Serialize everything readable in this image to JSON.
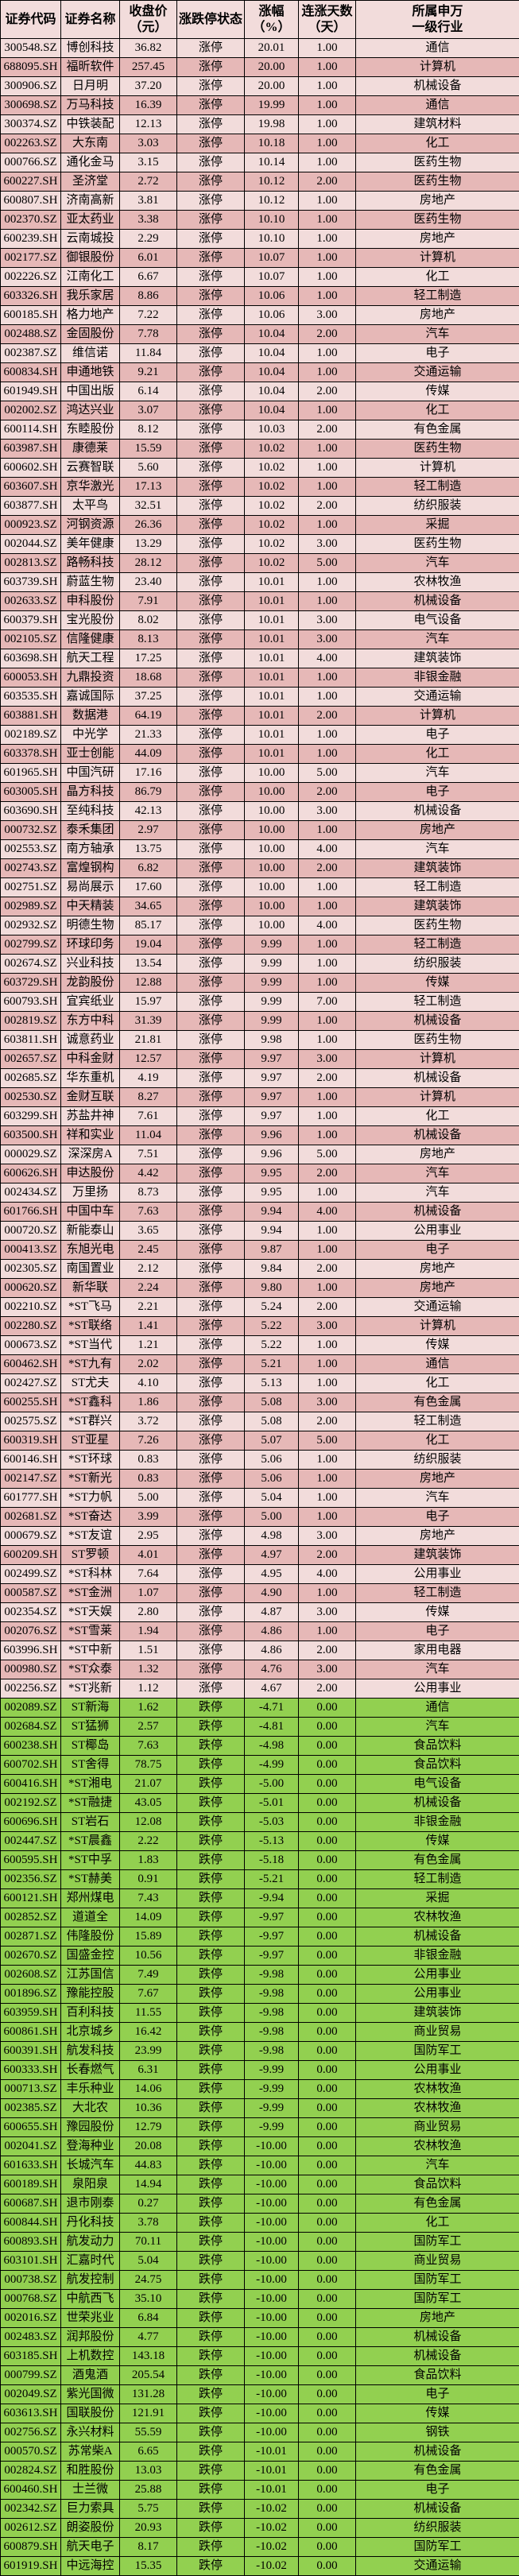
{
  "table": {
    "columns": [
      {
        "key": "code",
        "label": "证券代码"
      },
      {
        "key": "name",
        "label": "证券名称"
      },
      {
        "key": "close_price",
        "label": "收盘价\n（元）"
      },
      {
        "key": "limit_status",
        "label": "涨跌停状态"
      },
      {
        "key": "change_pct",
        "label": "涨幅\n（%）"
      },
      {
        "key": "consecutive_days",
        "label": "连涨天数\n（天）"
      },
      {
        "key": "industry",
        "label": "所属申万\n一级行业"
      }
    ],
    "status_labels": {
      "limit_up": "涨停",
      "limit_down": "跌停"
    },
    "colors": {
      "row_light": "#f2dcdb",
      "row_dark": "#e6b8b7",
      "row_limit_down": "#92d050",
      "header_bg": "#f2dcdb",
      "grid": "#000000"
    },
    "rows": [
      [
        "300548.SZ",
        "博创科技",
        "36.82",
        "涨停",
        "20.01",
        "1.00",
        "通信"
      ],
      [
        "688095.SH",
        "福昕软件",
        "257.45",
        "涨停",
        "20.00",
        "1.00",
        "计算机"
      ],
      [
        "300906.SZ",
        "日月明",
        "37.20",
        "涨停",
        "20.00",
        "1.00",
        "机械设备"
      ],
      [
        "300698.SZ",
        "万马科技",
        "16.39",
        "涨停",
        "19.99",
        "1.00",
        "通信"
      ],
      [
        "300374.SZ",
        "中铁装配",
        "12.13",
        "涨停",
        "19.98",
        "1.00",
        "建筑材料"
      ],
      [
        "002263.SZ",
        "大东南",
        "3.03",
        "涨停",
        "10.18",
        "1.00",
        "化工"
      ],
      [
        "000766.SZ",
        "通化金马",
        "3.15",
        "涨停",
        "10.14",
        "1.00",
        "医药生物"
      ],
      [
        "600227.SH",
        "圣济堂",
        "2.72",
        "涨停",
        "10.12",
        "2.00",
        "医药生物"
      ],
      [
        "600807.SH",
        "济南高新",
        "3.81",
        "涨停",
        "10.12",
        "1.00",
        "房地产"
      ],
      [
        "002370.SZ",
        "亚太药业",
        "3.38",
        "涨停",
        "10.10",
        "1.00",
        "医药生物"
      ],
      [
        "600239.SH",
        "云南城投",
        "2.29",
        "涨停",
        "10.10",
        "1.00",
        "房地产"
      ],
      [
        "002177.SZ",
        "御银股份",
        "6.01",
        "涨停",
        "10.07",
        "1.00",
        "计算机"
      ],
      [
        "002226.SZ",
        "江南化工",
        "6.67",
        "涨停",
        "10.07",
        "1.00",
        "化工"
      ],
      [
        "603326.SH",
        "我乐家居",
        "8.86",
        "涨停",
        "10.06",
        "1.00",
        "轻工制造"
      ],
      [
        "600185.SH",
        "格力地产",
        "7.22",
        "涨停",
        "10.06",
        "3.00",
        "房地产"
      ],
      [
        "002488.SZ",
        "金固股份",
        "7.78",
        "涨停",
        "10.04",
        "2.00",
        "汽车"
      ],
      [
        "002387.SZ",
        "维信诺",
        "11.84",
        "涨停",
        "10.04",
        "1.00",
        "电子"
      ],
      [
        "600834.SH",
        "申通地铁",
        "9.21",
        "涨停",
        "10.04",
        "1.00",
        "交通运输"
      ],
      [
        "601949.SH",
        "中国出版",
        "6.14",
        "涨停",
        "10.04",
        "2.00",
        "传媒"
      ],
      [
        "002002.SZ",
        "鸿达兴业",
        "3.07",
        "涨停",
        "10.04",
        "1.00",
        "化工"
      ],
      [
        "600114.SH",
        "东睦股份",
        "8.12",
        "涨停",
        "10.03",
        "2.00",
        "有色金属"
      ],
      [
        "603987.SH",
        "康德莱",
        "15.59",
        "涨停",
        "10.02",
        "1.00",
        "医药生物"
      ],
      [
        "600602.SH",
        "云赛智联",
        "5.60",
        "涨停",
        "10.02",
        "1.00",
        "计算机"
      ],
      [
        "603607.SH",
        "京华激光",
        "17.13",
        "涨停",
        "10.02",
        "1.00",
        "轻工制造"
      ],
      [
        "603877.SH",
        "太平鸟",
        "32.51",
        "涨停",
        "10.02",
        "2.00",
        "纺织服装"
      ],
      [
        "000923.SZ",
        "河钢资源",
        "26.36",
        "涨停",
        "10.02",
        "1.00",
        "采掘"
      ],
      [
        "002044.SZ",
        "美年健康",
        "13.29",
        "涨停",
        "10.02",
        "3.00",
        "医药生物"
      ],
      [
        "002813.SZ",
        "路畅科技",
        "28.12",
        "涨停",
        "10.02",
        "5.00",
        "汽车"
      ],
      [
        "603739.SH",
        "蔚蓝生物",
        "23.40",
        "涨停",
        "10.01",
        "1.00",
        "农林牧渔"
      ],
      [
        "002633.SZ",
        "申科股份",
        "7.91",
        "涨停",
        "10.01",
        "1.00",
        "机械设备"
      ],
      [
        "600379.SH",
        "宝光股份",
        "8.02",
        "涨停",
        "10.01",
        "3.00",
        "电气设备"
      ],
      [
        "002105.SZ",
        "信隆健康",
        "8.13",
        "涨停",
        "10.01",
        "3.00",
        "汽车"
      ],
      [
        "603698.SH",
        "航天工程",
        "17.25",
        "涨停",
        "10.01",
        "4.00",
        "建筑装饰"
      ],
      [
        "600053.SH",
        "九鼎投资",
        "18.68",
        "涨停",
        "10.01",
        "1.00",
        "非银金融"
      ],
      [
        "603535.SH",
        "嘉诚国际",
        "37.25",
        "涨停",
        "10.01",
        "1.00",
        "交通运输"
      ],
      [
        "603881.SH",
        "数据港",
        "64.19",
        "涨停",
        "10.01",
        "2.00",
        "计算机"
      ],
      [
        "002189.SZ",
        "中光学",
        "21.33",
        "涨停",
        "10.01",
        "1.00",
        "电子"
      ],
      [
        "603378.SH",
        "亚士创能",
        "44.09",
        "涨停",
        "10.01",
        "1.00",
        "化工"
      ],
      [
        "601965.SH",
        "中国汽研",
        "17.16",
        "涨停",
        "10.00",
        "5.00",
        "汽车"
      ],
      [
        "603005.SH",
        "晶方科技",
        "86.79",
        "涨停",
        "10.00",
        "2.00",
        "电子"
      ],
      [
        "603690.SH",
        "至纯科技",
        "42.13",
        "涨停",
        "10.00",
        "3.00",
        "机械设备"
      ],
      [
        "000732.SZ",
        "泰禾集团",
        "2.97",
        "涨停",
        "10.00",
        "1.00",
        "房地产"
      ],
      [
        "002553.SZ",
        "南方轴承",
        "13.75",
        "涨停",
        "10.00",
        "4.00",
        "汽车"
      ],
      [
        "002743.SZ",
        "富煌钢构",
        "6.82",
        "涨停",
        "10.00",
        "2.00",
        "建筑装饰"
      ],
      [
        "002751.SZ",
        "易尚展示",
        "17.60",
        "涨停",
        "10.00",
        "1.00",
        "轻工制造"
      ],
      [
        "002989.SZ",
        "中天精装",
        "34.65",
        "涨停",
        "10.00",
        "1.00",
        "建筑装饰"
      ],
      [
        "002932.SZ",
        "明德生物",
        "85.17",
        "涨停",
        "10.00",
        "4.00",
        "医药生物"
      ],
      [
        "002799.SZ",
        "环球印务",
        "19.04",
        "涨停",
        "9.99",
        "1.00",
        "轻工制造"
      ],
      [
        "002674.SZ",
        "兴业科技",
        "13.54",
        "涨停",
        "9.99",
        "1.00",
        "纺织服装"
      ],
      [
        "603729.SH",
        "龙韵股份",
        "12.88",
        "涨停",
        "9.99",
        "1.00",
        "传媒"
      ],
      [
        "600793.SH",
        "宜宾纸业",
        "15.97",
        "涨停",
        "9.99",
        "7.00",
        "轻工制造"
      ],
      [
        "002819.SZ",
        "东方中科",
        "31.39",
        "涨停",
        "9.99",
        "1.00",
        "机械设备"
      ],
      [
        "603811.SH",
        "诚意药业",
        "21.81",
        "涨停",
        "9.98",
        "1.00",
        "医药生物"
      ],
      [
        "002657.SZ",
        "中科金财",
        "12.57",
        "涨停",
        "9.97",
        "3.00",
        "计算机"
      ],
      [
        "002685.SZ",
        "华东重机",
        "4.19",
        "涨停",
        "9.97",
        "2.00",
        "机械设备"
      ],
      [
        "002530.SZ",
        "金财互联",
        "8.27",
        "涨停",
        "9.97",
        "1.00",
        "计算机"
      ],
      [
        "603299.SH",
        "苏盐井神",
        "7.61",
        "涨停",
        "9.97",
        "1.00",
        "化工"
      ],
      [
        "603500.SH",
        "祥和实业",
        "11.04",
        "涨停",
        "9.96",
        "1.00",
        "机械设备"
      ],
      [
        "000029.SZ",
        "深深房A",
        "7.51",
        "涨停",
        "9.96",
        "5.00",
        "房地产"
      ],
      [
        "600626.SH",
        "申达股份",
        "4.42",
        "涨停",
        "9.95",
        "2.00",
        "汽车"
      ],
      [
        "002434.SZ",
        "万里扬",
        "8.73",
        "涨停",
        "9.95",
        "1.00",
        "汽车"
      ],
      [
        "601766.SH",
        "中国中车",
        "7.63",
        "涨停",
        "9.94",
        "4.00",
        "机械设备"
      ],
      [
        "000720.SZ",
        "新能泰山",
        "3.65",
        "涨停",
        "9.94",
        "1.00",
        "公用事业"
      ],
      [
        "000413.SZ",
        "东旭光电",
        "2.45",
        "涨停",
        "9.87",
        "1.00",
        "电子"
      ],
      [
        "002305.SZ",
        "南国置业",
        "2.12",
        "涨停",
        "9.84",
        "2.00",
        "房地产"
      ],
      [
        "000620.SZ",
        "新华联",
        "2.24",
        "涨停",
        "9.80",
        "1.00",
        "房地产"
      ],
      [
        "002210.SZ",
        "*ST飞马",
        "2.21",
        "涨停",
        "5.24",
        "2.00",
        "交通运输"
      ],
      [
        "002280.SZ",
        "*ST联络",
        "1.41",
        "涨停",
        "5.22",
        "3.00",
        "计算机"
      ],
      [
        "000673.SZ",
        "*ST当代",
        "1.21",
        "涨停",
        "5.22",
        "1.00",
        "传媒"
      ],
      [
        "600462.SH",
        "*ST九有",
        "2.02",
        "涨停",
        "5.21",
        "1.00",
        "通信"
      ],
      [
        "002427.SZ",
        "ST尤夫",
        "4.10",
        "涨停",
        "5.13",
        "1.00",
        "化工"
      ],
      [
        "600255.SH",
        "*ST鑫科",
        "1.86",
        "涨停",
        "5.08",
        "3.00",
        "有色金属"
      ],
      [
        "002575.SZ",
        "*ST群兴",
        "3.72",
        "涨停",
        "5.08",
        "2.00",
        "轻工制造"
      ],
      [
        "600319.SH",
        "ST亚星",
        "7.26",
        "涨停",
        "5.07",
        "5.00",
        "化工"
      ],
      [
        "600146.SH",
        "*ST环球",
        "0.83",
        "涨停",
        "5.06",
        "1.00",
        "纺织服装"
      ],
      [
        "002147.SZ",
        "*ST新光",
        "0.83",
        "涨停",
        "5.06",
        "1.00",
        "房地产"
      ],
      [
        "601777.SH",
        "*ST力帆",
        "5.00",
        "涨停",
        "5.04",
        "1.00",
        "汽车"
      ],
      [
        "002681.SZ",
        "*ST奋达",
        "3.99",
        "涨停",
        "5.00",
        "1.00",
        "电子"
      ],
      [
        "000679.SZ",
        "*ST友谊",
        "2.95",
        "涨停",
        "4.98",
        "3.00",
        "房地产"
      ],
      [
        "600209.SH",
        "ST罗顿",
        "4.01",
        "涨停",
        "4.97",
        "2.00",
        "建筑装饰"
      ],
      [
        "002499.SZ",
        "*ST科林",
        "7.64",
        "涨停",
        "4.95",
        "4.00",
        "公用事业"
      ],
      [
        "000587.SZ",
        "*ST金洲",
        "1.07",
        "涨停",
        "4.90",
        "1.00",
        "轻工制造"
      ],
      [
        "002354.SZ",
        "*ST天娱",
        "2.80",
        "涨停",
        "4.87",
        "3.00",
        "传媒"
      ],
      [
        "002076.SZ",
        "*ST雪莱",
        "1.94",
        "涨停",
        "4.86",
        "1.00",
        "电子"
      ],
      [
        "603996.SH",
        "*ST中新",
        "1.51",
        "涨停",
        "4.86",
        "2.00",
        "家用电器"
      ],
      [
        "000980.SZ",
        "*ST众泰",
        "1.32",
        "涨停",
        "4.76",
        "3.00",
        "汽车"
      ],
      [
        "002256.SZ",
        "*ST兆新",
        "1.12",
        "涨停",
        "4.67",
        "2.00",
        "公用事业"
      ],
      [
        "002089.SZ",
        "ST新海",
        "1.62",
        "跌停",
        "-4.71",
        "0.00",
        "通信"
      ],
      [
        "002684.SZ",
        "ST猛狮",
        "2.57",
        "跌停",
        "-4.81",
        "0.00",
        "汽车"
      ],
      [
        "600238.SH",
        "ST椰岛",
        "7.63",
        "跌停",
        "-4.98",
        "0.00",
        "食品饮料"
      ],
      [
        "600702.SH",
        "ST舍得",
        "78.75",
        "跌停",
        "-4.99",
        "0.00",
        "食品饮料"
      ],
      [
        "600416.SH",
        "*ST湘电",
        "21.07",
        "跌停",
        "-5.00",
        "0.00",
        "电气设备"
      ],
      [
        "002192.SZ",
        "*ST融捷",
        "43.05",
        "跌停",
        "-5.01",
        "0.00",
        "机械设备"
      ],
      [
        "600696.SH",
        "ST岩石",
        "12.08",
        "跌停",
        "-5.03",
        "0.00",
        "非银金融"
      ],
      [
        "002447.SZ",
        "*ST晨鑫",
        "2.22",
        "跌停",
        "-5.13",
        "0.00",
        "传媒"
      ],
      [
        "600595.SH",
        "*ST中孚",
        "1.83",
        "跌停",
        "-5.18",
        "0.00",
        "有色金属"
      ],
      [
        "002356.SZ",
        "*ST赫美",
        "0.91",
        "跌停",
        "-5.21",
        "0.00",
        "轻工制造"
      ],
      [
        "600121.SH",
        "郑州煤电",
        "7.43",
        "跌停",
        "-9.94",
        "0.00",
        "采掘"
      ],
      [
        "002852.SZ",
        "道道全",
        "14.09",
        "跌停",
        "-9.97",
        "0.00",
        "农林牧渔"
      ],
      [
        "002871.SZ",
        "伟隆股份",
        "15.89",
        "跌停",
        "-9.97",
        "0.00",
        "机械设备"
      ],
      [
        "002670.SZ",
        "国盛金控",
        "10.56",
        "跌停",
        "-9.97",
        "0.00",
        "非银金融"
      ],
      [
        "002608.SZ",
        "江苏国信",
        "7.49",
        "跌停",
        "-9.98",
        "0.00",
        "公用事业"
      ],
      [
        "001896.SZ",
        "豫能控股",
        "7.67",
        "跌停",
        "-9.98",
        "0.00",
        "公用事业"
      ],
      [
        "603959.SH",
        "百利科技",
        "11.55",
        "跌停",
        "-9.98",
        "0.00",
        "建筑装饰"
      ],
      [
        "600861.SH",
        "北京城乡",
        "16.42",
        "跌停",
        "-9.98",
        "0.00",
        "商业贸易"
      ],
      [
        "600391.SH",
        "航发科技",
        "23.99",
        "跌停",
        "-9.98",
        "0.00",
        "国防军工"
      ],
      [
        "600333.SH",
        "长春燃气",
        "6.31",
        "跌停",
        "-9.99",
        "0.00",
        "公用事业"
      ],
      [
        "000713.SZ",
        "丰乐种业",
        "14.06",
        "跌停",
        "-9.99",
        "0.00",
        "农林牧渔"
      ],
      [
        "002385.SZ",
        "大北农",
        "10.36",
        "跌停",
        "-9.99",
        "0.00",
        "农林牧渔"
      ],
      [
        "600655.SH",
        "豫园股份",
        "12.79",
        "跌停",
        "-9.99",
        "0.00",
        "商业贸易"
      ],
      [
        "002041.SZ",
        "登海种业",
        "20.08",
        "跌停",
        "-10.00",
        "0.00",
        "农林牧渔"
      ],
      [
        "601633.SH",
        "长城汽车",
        "44.83",
        "跌停",
        "-10.00",
        "0.00",
        "汽车"
      ],
      [
        "600189.SH",
        "泉阳泉",
        "14.94",
        "跌停",
        "-10.00",
        "0.00",
        "食品饮料"
      ],
      [
        "600687.SH",
        "退市刚泰",
        "0.27",
        "跌停",
        "-10.00",
        "0.00",
        "有色金属"
      ],
      [
        "600844.SH",
        "丹化科技",
        "3.78",
        "跌停",
        "-10.00",
        "0.00",
        "化工"
      ],
      [
        "600893.SH",
        "航发动力",
        "70.11",
        "跌停",
        "-10.00",
        "0.00",
        "国防军工"
      ],
      [
        "603101.SH",
        "汇嘉时代",
        "5.04",
        "跌停",
        "-10.00",
        "0.00",
        "商业贸易"
      ],
      [
        "000738.SZ",
        "航发控制",
        "24.75",
        "跌停",
        "-10.00",
        "0.00",
        "国防军工"
      ],
      [
        "000768.SZ",
        "中航西飞",
        "35.10",
        "跌停",
        "-10.00",
        "0.00",
        "国防军工"
      ],
      [
        "002016.SZ",
        "世荣兆业",
        "6.84",
        "跌停",
        "-10.00",
        "0.00",
        "房地产"
      ],
      [
        "002483.SZ",
        "润邦股份",
        "4.77",
        "跌停",
        "-10.00",
        "0.00",
        "机械设备"
      ],
      [
        "603185.SH",
        "上机数控",
        "143.18",
        "跌停",
        "-10.00",
        "0.00",
        "机械设备"
      ],
      [
        "000799.SZ",
        "酒鬼酒",
        "205.54",
        "跌停",
        "-10.00",
        "0.00",
        "食品饮料"
      ],
      [
        "002049.SZ",
        "紫光国微",
        "131.28",
        "跌停",
        "-10.00",
        "0.00",
        "电子"
      ],
      [
        "603613.SH",
        "国联股份",
        "121.91",
        "跌停",
        "-10.00",
        "0.00",
        "传媒"
      ],
      [
        "002756.SZ",
        "永兴材料",
        "55.59",
        "跌停",
        "-10.00",
        "0.00",
        "钢铁"
      ],
      [
        "000570.SZ",
        "苏常柴A",
        "6.65",
        "跌停",
        "-10.01",
        "0.00",
        "机械设备"
      ],
      [
        "002824.SZ",
        "和胜股份",
        "13.03",
        "跌停",
        "-10.01",
        "0.00",
        "有色金属"
      ],
      [
        "600460.SH",
        "士兰微",
        "25.88",
        "跌停",
        "-10.01",
        "0.00",
        "电子"
      ],
      [
        "002342.SZ",
        "巨力索具",
        "5.75",
        "跌停",
        "-10.02",
        "0.00",
        "机械设备"
      ],
      [
        "002612.SZ",
        "朗姿股份",
        "20.93",
        "跌停",
        "-10.02",
        "0.00",
        "纺织服装"
      ],
      [
        "600879.SH",
        "航天电子",
        "8.17",
        "跌停",
        "-10.02",
        "0.00",
        "国防军工"
      ],
      [
        "601919.SH",
        "中远海控",
        "15.35",
        "跌停",
        "-10.02",
        "0.00",
        "交通运输"
      ]
    ]
  }
}
